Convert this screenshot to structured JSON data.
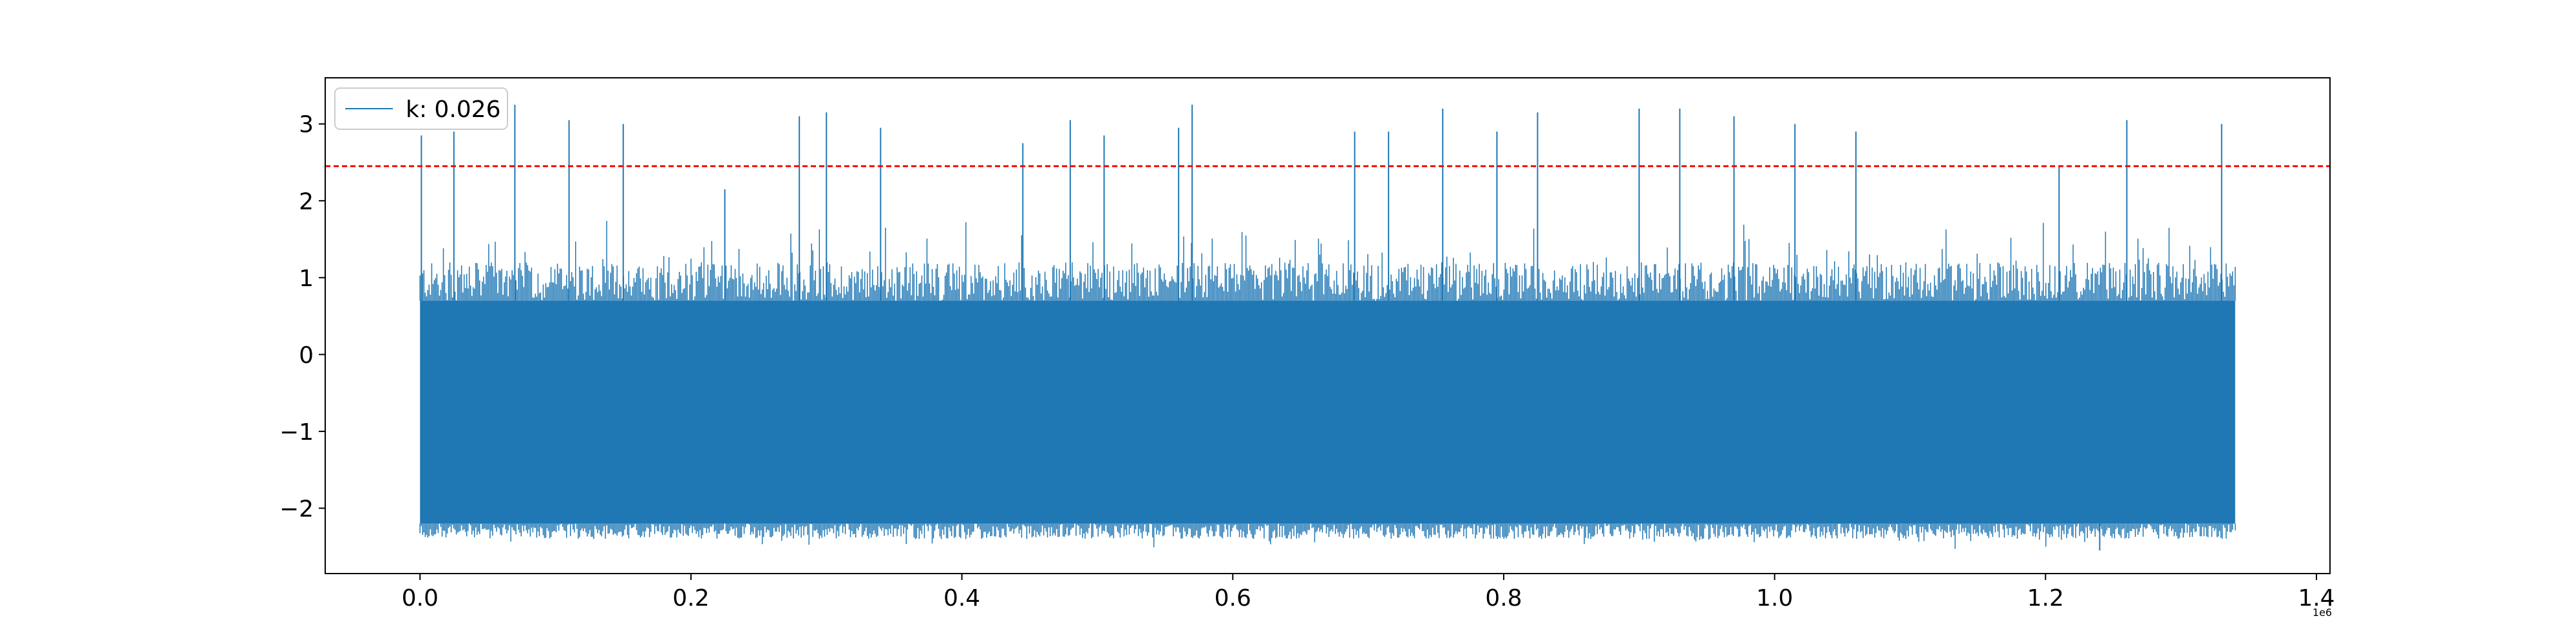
{
  "chart_data": {
    "type": "line",
    "title": "",
    "xlabel": "",
    "ylabel": "",
    "xlim": [
      -70000,
      1410000
    ],
    "ylim": [
      -2.85,
      3.6
    ],
    "x_ticks": [
      0,
      0.2,
      0.4,
      0.6,
      0.8,
      1.0,
      1.2,
      1.4
    ],
    "x_tick_labels": [
      "0.0",
      "0.2",
      "0.4",
      "0.6",
      "0.8",
      "1.0",
      "1.2",
      "1.4"
    ],
    "x_offset_label": "1e6",
    "y_ticks": [
      -2,
      -1,
      0,
      1,
      2,
      3
    ],
    "y_tick_labels": [
      "−2",
      "−1",
      "0",
      "1",
      "2",
      "3"
    ],
    "grid": false,
    "legend_position": "upper-left",
    "series": [
      {
        "name": "k: 0.026",
        "color": "#1f77b4",
        "x_range": [
          0,
          1340000
        ],
        "band_low": -2.2,
        "band_high": 0.7,
        "min": -2.55,
        "max": 3.25,
        "spikes": [
          [
            1000,
            2.85
          ],
          [
            25000,
            2.9
          ],
          [
            70000,
            3.25
          ],
          [
            110000,
            3.05
          ],
          [
            150000,
            3.0
          ],
          [
            225000,
            2.15
          ],
          [
            280000,
            3.1
          ],
          [
            300000,
            3.15
          ],
          [
            340000,
            2.95
          ],
          [
            445000,
            2.75
          ],
          [
            480000,
            3.05
          ],
          [
            505000,
            2.85
          ],
          [
            560000,
            2.95
          ],
          [
            570000,
            3.25
          ],
          [
            690000,
            2.9
          ],
          [
            715000,
            2.9
          ],
          [
            755000,
            3.2
          ],
          [
            795000,
            2.9
          ],
          [
            825000,
            3.15
          ],
          [
            900000,
            3.2
          ],
          [
            930000,
            3.2
          ],
          [
            970000,
            3.1
          ],
          [
            1015000,
            3.0
          ],
          [
            1060000,
            2.9
          ],
          [
            1210000,
            2.45
          ],
          [
            1260000,
            3.05
          ],
          [
            1330000,
            3.0
          ]
        ]
      }
    ],
    "threshold": {
      "y": 2.45,
      "color": "#ff0000",
      "style": "dashed"
    }
  }
}
